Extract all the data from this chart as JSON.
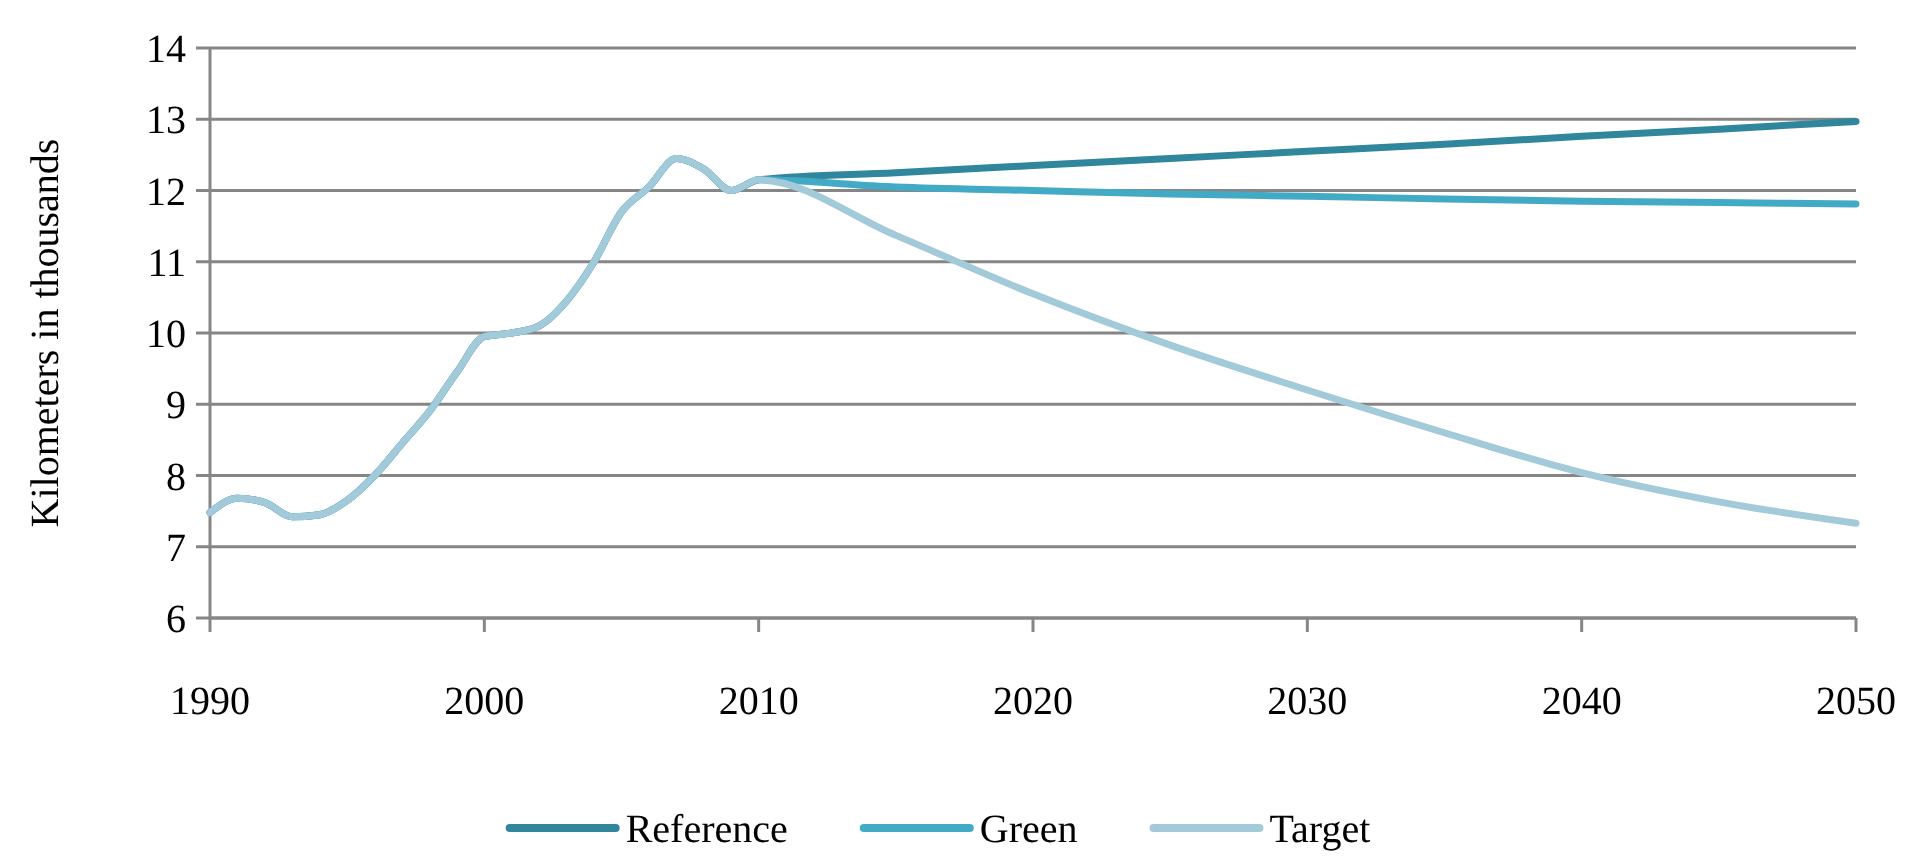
{
  "chart_data": {
    "type": "line",
    "ylabel": "Kilometers in thousands",
    "xlim": [
      1990,
      2050
    ],
    "xticks": [
      1990,
      2000,
      2010,
      2020,
      2030,
      2040,
      2050
    ],
    "ylim": [
      6,
      14
    ],
    "yticks": [
      6,
      7,
      8,
      9,
      10,
      11,
      12,
      13,
      14
    ],
    "grid": "y",
    "legend": "bottom",
    "marker": "none",
    "line_style": "solid",
    "series": [
      {
        "name": "Reference",
        "color": "#2f869d",
        "x": [
          1990,
          1991,
          1992,
          1993,
          1994,
          1995,
          1996,
          1997,
          1998,
          1999,
          2000,
          2001,
          2002,
          2003,
          2004,
          2005,
          2006,
          2007,
          2008,
          2009,
          2010,
          2015,
          2020,
          2025,
          2030,
          2035,
          2040,
          2045,
          2050
        ],
        "values": [
          7.48,
          7.68,
          7.62,
          7.42,
          7.45,
          7.65,
          8.0,
          8.45,
          8.9,
          9.45,
          9.95,
          10.0,
          10.1,
          10.45,
          11.0,
          11.7,
          12.05,
          12.45,
          12.3,
          12.0,
          12.15,
          12.25,
          12.35,
          12.45,
          12.55,
          12.65,
          12.76,
          12.86,
          12.97
        ]
      },
      {
        "name": "Green",
        "color": "#43aac6",
        "x": [
          1990,
          1991,
          1992,
          1993,
          1994,
          1995,
          1996,
          1997,
          1998,
          1999,
          2000,
          2001,
          2002,
          2003,
          2004,
          2005,
          2006,
          2007,
          2008,
          2009,
          2010,
          2015,
          2020,
          2025,
          2030,
          2035,
          2040,
          2045,
          2050
        ],
        "values": [
          7.48,
          7.68,
          7.62,
          7.42,
          7.45,
          7.65,
          8.0,
          8.45,
          8.9,
          9.45,
          9.95,
          10.0,
          10.1,
          10.45,
          11.0,
          11.7,
          12.05,
          12.45,
          12.3,
          12.0,
          12.15,
          12.05,
          12.0,
          11.95,
          11.92,
          11.88,
          11.85,
          11.83,
          11.81
        ]
      },
      {
        "name": "Target",
        "color": "#a3cad8",
        "x": [
          1990,
          1991,
          1992,
          1993,
          1994,
          1995,
          1996,
          1997,
          1998,
          1999,
          2000,
          2001,
          2002,
          2003,
          2004,
          2005,
          2006,
          2007,
          2008,
          2009,
          2010,
          2015,
          2020,
          2025,
          2030,
          2035,
          2040,
          2045,
          2050
        ],
        "values": [
          7.48,
          7.68,
          7.62,
          7.42,
          7.45,
          7.65,
          8.0,
          8.45,
          8.9,
          9.45,
          9.95,
          10.0,
          10.1,
          10.45,
          11.0,
          11.7,
          12.05,
          12.45,
          12.3,
          12.0,
          12.15,
          11.37,
          10.55,
          9.83,
          9.2,
          8.6,
          8.04,
          7.63,
          7.33
        ]
      }
    ]
  }
}
